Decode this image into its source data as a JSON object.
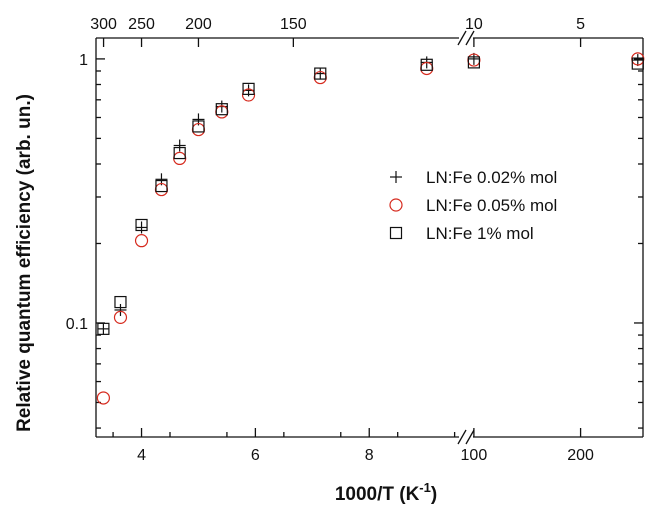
{
  "chart_data": {
    "type": "scatter",
    "title": "",
    "xlabel": "1000/T (K⁻¹)",
    "xlabel_parts": [
      "1000/T (K",
      "-1",
      ")"
    ],
    "ylabel": "Relative quantum efficiency (arb. un.)",
    "y_scale": "log",
    "ylim": [
      0.037,
      1.2
    ],
    "y_ticks": [
      {
        "value": 0.1,
        "label": "0.1"
      },
      {
        "value": 1,
        "label": "1"
      }
    ],
    "x_axis_broken": true,
    "x_segments": [
      {
        "xlim": [
          3.2,
          9.7
        ],
        "ticks": [
          4,
          6,
          8
        ]
      },
      {
        "xlim": [
          95,
          300
        ],
        "ticks": [
          100,
          200
        ]
      }
    ],
    "x_tick_labels": [
      "4",
      "6",
      "8",
      "100",
      "200"
    ],
    "top_axis_labels": [
      {
        "x": 3.333,
        "label": "300"
      },
      {
        "x": 4.0,
        "label": "250"
      },
      {
        "x": 5.0,
        "label": "200"
      },
      {
        "x": 6.667,
        "label": "150"
      },
      {
        "x": 100,
        "label": "10"
      },
      {
        "x": 200,
        "label": "5"
      }
    ],
    "legend_position": "right-middle",
    "series": [
      {
        "name": "LN:Fe 0.02% mol",
        "marker": "plus",
        "color": "#111111",
        "points": [
          {
            "x": 3.33,
            "y": 0.095
          },
          {
            "x": 3.63,
            "y": 0.112
          },
          {
            "x": 4.0,
            "y": 0.23
          },
          {
            "x": 4.35,
            "y": 0.35
          },
          {
            "x": 4.67,
            "y": 0.47
          },
          {
            "x": 5.0,
            "y": 0.59
          },
          {
            "x": 5.41,
            "y": 0.66
          },
          {
            "x": 5.88,
            "y": 0.76
          },
          {
            "x": 7.14,
            "y": 0.88
          },
          {
            "x": 9.01,
            "y": 0.97
          },
          {
            "x": 100,
            "y": 1.0
          },
          {
            "x": 290,
            "y": 0.99
          }
        ]
      },
      {
        "name": "LN:Fe 0.05% mol",
        "marker": "circle",
        "color": "#d62a1e",
        "points": [
          {
            "x": 3.33,
            "y": 0.052
          },
          {
            "x": 3.63,
            "y": 0.105
          },
          {
            "x": 4.0,
            "y": 0.205
          },
          {
            "x": 4.35,
            "y": 0.32
          },
          {
            "x": 4.67,
            "y": 0.42
          },
          {
            "x": 5.0,
            "y": 0.54
          },
          {
            "x": 5.41,
            "y": 0.63
          },
          {
            "x": 5.88,
            "y": 0.73
          },
          {
            "x": 7.14,
            "y": 0.85
          },
          {
            "x": 9.01,
            "y": 0.92
          },
          {
            "x": 100,
            "y": 0.99
          },
          {
            "x": 290,
            "y": 1.0
          }
        ]
      },
      {
        "name": "LN:Fe 1% mol",
        "marker": "square",
        "color": "#111111",
        "points": [
          {
            "x": 3.33,
            "y": 0.095
          },
          {
            "x": 3.63,
            "y": 0.12
          },
          {
            "x": 4.0,
            "y": 0.235
          },
          {
            "x": 4.35,
            "y": 0.33
          },
          {
            "x": 4.67,
            "y": 0.44
          },
          {
            "x": 5.0,
            "y": 0.555
          },
          {
            "x": 5.41,
            "y": 0.645
          },
          {
            "x": 5.88,
            "y": 0.77
          },
          {
            "x": 7.14,
            "y": 0.88
          },
          {
            "x": 9.01,
            "y": 0.95
          },
          {
            "x": 100,
            "y": 0.97
          },
          {
            "x": 290,
            "y": 0.96
          }
        ]
      }
    ]
  }
}
